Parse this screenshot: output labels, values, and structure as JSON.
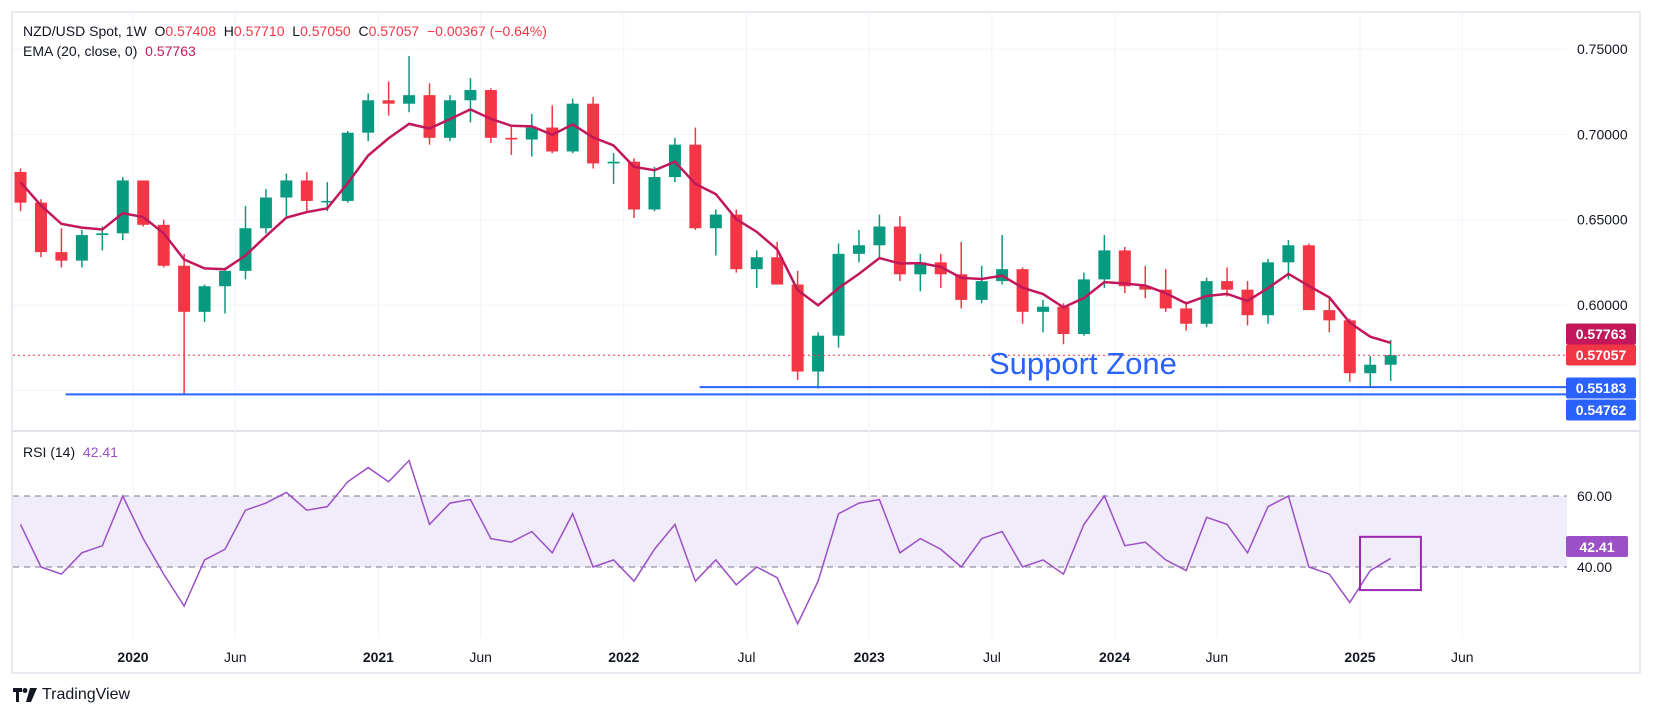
{
  "header": {
    "symbol": "NZD/USD Spot, 1W",
    "o_label": "O",
    "open": "0.57408",
    "h_label": "H",
    "high": "0.57710",
    "l_label": "L",
    "low": "0.57050",
    "c_label": "C",
    "close": "0.57057",
    "change": "−0.00367 (−0.64%)",
    "ema_label": "EMA (20, close, 0)",
    "ema_value": "0.57763"
  },
  "rsi_legend": {
    "label": "RSI (14)",
    "value": "42.41"
  },
  "annotation": {
    "support_text": "Support Zone"
  },
  "branding": {
    "name": "TradingView"
  },
  "colors": {
    "up": "#089981",
    "down": "#f23645",
    "ema": "#c2185b",
    "support": "#2962ff",
    "rsi": "#9c4fc7",
    "rsi_band": "#f1ecf9",
    "highlight_box": "#9c27b0"
  },
  "chart_data": [
    {
      "type": "candlestick",
      "title": "NZD/USD Spot, 1W",
      "y_ticks": [
        "0.75000",
        "0.70000",
        "0.65000",
        "0.60000"
      ],
      "ylim": [
        0.525,
        0.765
      ],
      "x_ticks": [
        "2020",
        "Jun",
        "2021",
        "Jun",
        "2022",
        "Jul",
        "2023",
        "Jul",
        "2024",
        "Jun",
        "2025",
        "Jun"
      ],
      "x_tick_dates": [
        "2020-01",
        "2020-06",
        "2021-01",
        "2021-06",
        "2022-01",
        "2022-07",
        "2023-01",
        "2023-07",
        "2024-01",
        "2024-06",
        "2025-01",
        "2025-06"
      ],
      "grid": true,
      "candles_columns": [
        "date",
        "open",
        "high",
        "low",
        "close"
      ],
      "candles": [
        [
          "2019-07",
          0.678,
          0.68,
          0.655,
          0.66
        ],
        [
          "2019-08",
          0.66,
          0.662,
          0.628,
          0.631
        ],
        [
          "2019-09",
          0.631,
          0.645,
          0.622,
          0.626
        ],
        [
          "2019-10",
          0.626,
          0.644,
          0.622,
          0.641
        ],
        [
          "2019-11",
          0.641,
          0.646,
          0.632,
          0.642
        ],
        [
          "2019-12",
          0.642,
          0.675,
          0.638,
          0.673
        ],
        [
          "2020-01",
          0.673,
          0.673,
          0.646,
          0.647
        ],
        [
          "2020-02",
          0.647,
          0.65,
          0.622,
          0.623
        ],
        [
          "2020-03",
          0.623,
          0.63,
          0.547,
          0.596
        ],
        [
          "2020-04",
          0.596,
          0.612,
          0.59,
          0.611
        ],
        [
          "2020-05",
          0.611,
          0.622,
          0.595,
          0.62
        ],
        [
          "2020-06",
          0.62,
          0.658,
          0.615,
          0.645
        ],
        [
          "2020-07",
          0.645,
          0.668,
          0.642,
          0.663
        ],
        [
          "2020-08",
          0.663,
          0.677,
          0.652,
          0.673
        ],
        [
          "2020-09",
          0.673,
          0.678,
          0.655,
          0.661
        ],
        [
          "2020-10",
          0.661,
          0.672,
          0.655,
          0.661
        ],
        [
          "2020-11",
          0.661,
          0.702,
          0.66,
          0.701
        ],
        [
          "2020-12",
          0.701,
          0.724,
          0.696,
          0.72
        ],
        [
          "2021-01",
          0.72,
          0.731,
          0.711,
          0.718
        ],
        [
          "2021-02",
          0.718,
          0.746,
          0.713,
          0.723
        ],
        [
          "2021-03",
          0.723,
          0.73,
          0.694,
          0.698
        ],
        [
          "2021-04",
          0.698,
          0.723,
          0.696,
          0.72
        ],
        [
          "2021-05",
          0.72,
          0.733,
          0.707,
          0.726
        ],
        [
          "2021-06",
          0.726,
          0.727,
          0.695,
          0.698
        ],
        [
          "2021-07",
          0.698,
          0.705,
          0.688,
          0.697
        ],
        [
          "2021-08",
          0.697,
          0.712,
          0.687,
          0.704
        ],
        [
          "2021-09",
          0.704,
          0.717,
          0.689,
          0.69
        ],
        [
          "2021-10",
          0.69,
          0.721,
          0.689,
          0.718
        ],
        [
          "2021-11",
          0.718,
          0.722,
          0.68,
          0.683
        ],
        [
          "2021-12",
          0.683,
          0.689,
          0.671,
          0.684
        ],
        [
          "2022-01",
          0.684,
          0.686,
          0.651,
          0.656
        ],
        [
          "2022-02",
          0.656,
          0.681,
          0.655,
          0.675
        ],
        [
          "2022-03",
          0.675,
          0.698,
          0.672,
          0.694
        ],
        [
          "2022-04",
          0.694,
          0.704,
          0.644,
          0.645
        ],
        [
          "2022-05",
          0.645,
          0.656,
          0.629,
          0.653
        ],
        [
          "2022-06",
          0.653,
          0.656,
          0.619,
          0.621
        ],
        [
          "2022-07",
          0.621,
          0.632,
          0.61,
          0.628
        ],
        [
          "2022-08",
          0.628,
          0.637,
          0.612,
          0.612
        ],
        [
          "2022-09",
          0.612,
          0.62,
          0.556,
          0.561
        ],
        [
          "2022-10",
          0.561,
          0.584,
          0.551,
          0.582
        ],
        [
          "2022-11",
          0.582,
          0.636,
          0.575,
          0.63
        ],
        [
          "2022-12",
          0.63,
          0.644,
          0.625,
          0.635
        ],
        [
          "2023-01",
          0.635,
          0.653,
          0.628,
          0.646
        ],
        [
          "2023-02",
          0.646,
          0.652,
          0.614,
          0.618
        ],
        [
          "2023-03",
          0.618,
          0.63,
          0.608,
          0.625
        ],
        [
          "2023-04",
          0.625,
          0.63,
          0.61,
          0.618
        ],
        [
          "2023-05",
          0.618,
          0.637,
          0.598,
          0.603
        ],
        [
          "2023-06",
          0.603,
          0.623,
          0.601,
          0.614
        ],
        [
          "2023-07",
          0.614,
          0.641,
          0.612,
          0.621
        ],
        [
          "2023-08",
          0.621,
          0.622,
          0.589,
          0.596
        ],
        [
          "2023-09",
          0.596,
          0.603,
          0.584,
          0.599
        ],
        [
          "2023-10",
          0.599,
          0.601,
          0.577,
          0.583
        ],
        [
          "2023-11",
          0.583,
          0.619,
          0.582,
          0.615
        ],
        [
          "2023-12",
          0.615,
          0.641,
          0.61,
          0.632
        ],
        [
          "2024-01",
          0.632,
          0.634,
          0.607,
          0.611
        ],
        [
          "2024-02",
          0.611,
          0.623,
          0.604,
          0.609
        ],
        [
          "2024-03",
          0.609,
          0.621,
          0.596,
          0.598
        ],
        [
          "2024-04",
          0.598,
          0.602,
          0.585,
          0.589
        ],
        [
          "2024-05",
          0.589,
          0.616,
          0.587,
          0.614
        ],
        [
          "2024-06",
          0.614,
          0.622,
          0.605,
          0.609
        ],
        [
          "2024-07",
          0.609,
          0.614,
          0.588,
          0.594
        ],
        [
          "2024-08",
          0.594,
          0.627,
          0.589,
          0.625
        ],
        [
          "2024-09",
          0.625,
          0.638,
          0.615,
          0.635
        ],
        [
          "2024-10",
          0.635,
          0.636,
          0.597,
          0.597
        ],
        [
          "2024-11",
          0.597,
          0.605,
          0.584,
          0.591
        ],
        [
          "2024-12",
          0.591,
          0.592,
          0.555,
          0.56
        ],
        [
          "2025-01",
          0.56,
          0.57,
          0.552,
          0.565
        ],
        [
          "2025-02",
          0.565,
          0.5795,
          0.5555,
          0.57057
        ]
      ],
      "ema_name": "EMA (20, close, 0)",
      "price_labels": [
        {
          "value": "0.57763",
          "color": "#c2185b"
        },
        {
          "value": "0.57057",
          "color": "#f23645"
        },
        {
          "value": "0.55183",
          "color": "#2962ff"
        },
        {
          "value": "0.54762",
          "color": "#2962ff"
        }
      ],
      "support_lines": [
        {
          "price": 0.55183,
          "from": "2022-05"
        },
        {
          "price": 0.54762,
          "from": "2019-10"
        }
      ],
      "last_price_line": 0.57057
    },
    {
      "type": "line",
      "title": "RSI (14)",
      "ylim": [
        20,
        78
      ],
      "y_ticks": [
        "60.00",
        "40.00"
      ],
      "band": [
        40,
        60
      ],
      "current_label": "42.41",
      "series": [
        [
          "2019-07",
          52
        ],
        [
          "2019-08",
          40
        ],
        [
          "2019-09",
          38
        ],
        [
          "2019-10",
          44
        ],
        [
          "2019-11",
          46
        ],
        [
          "2019-12",
          60
        ],
        [
          "2020-01",
          48
        ],
        [
          "2020-02",
          38
        ],
        [
          "2020-03",
          29
        ],
        [
          "2020-04",
          42
        ],
        [
          "2020-05",
          45
        ],
        [
          "2020-06",
          56
        ],
        [
          "2020-07",
          58
        ],
        [
          "2020-08",
          61
        ],
        [
          "2020-09",
          56
        ],
        [
          "2020-10",
          57
        ],
        [
          "2020-11",
          64
        ],
        [
          "2020-12",
          68
        ],
        [
          "2021-01",
          64
        ],
        [
          "2021-02",
          70
        ],
        [
          "2021-03",
          52
        ],
        [
          "2021-04",
          58
        ],
        [
          "2021-05",
          59
        ],
        [
          "2021-06",
          48
        ],
        [
          "2021-07",
          47
        ],
        [
          "2021-08",
          50
        ],
        [
          "2021-09",
          44
        ],
        [
          "2021-10",
          55
        ],
        [
          "2021-11",
          40
        ],
        [
          "2021-12",
          42
        ],
        [
          "2022-01",
          36
        ],
        [
          "2022-02",
          45
        ],
        [
          "2022-03",
          52
        ],
        [
          "2022-04",
          36
        ],
        [
          "2022-05",
          42
        ],
        [
          "2022-06",
          35
        ],
        [
          "2022-07",
          40
        ],
        [
          "2022-08",
          37
        ],
        [
          "2022-09",
          24
        ],
        [
          "2022-10",
          36
        ],
        [
          "2022-11",
          55
        ],
        [
          "2022-12",
          58
        ],
        [
          "2023-01",
          59
        ],
        [
          "2023-02",
          44
        ],
        [
          "2023-03",
          48
        ],
        [
          "2023-04",
          45
        ],
        [
          "2023-05",
          40
        ],
        [
          "2023-06",
          48
        ],
        [
          "2023-07",
          50
        ],
        [
          "2023-08",
          40
        ],
        [
          "2023-09",
          42
        ],
        [
          "2023-10",
          38
        ],
        [
          "2023-11",
          52
        ],
        [
          "2023-12",
          60
        ],
        [
          "2024-01",
          46
        ],
        [
          "2024-02",
          47
        ],
        [
          "2024-03",
          42
        ],
        [
          "2024-04",
          39
        ],
        [
          "2024-05",
          54
        ],
        [
          "2024-06",
          52
        ],
        [
          "2024-07",
          44
        ],
        [
          "2024-08",
          57
        ],
        [
          "2024-09",
          60
        ],
        [
          "2024-10",
          40
        ],
        [
          "2024-11",
          38
        ],
        [
          "2024-12",
          30
        ],
        [
          "2025-01",
          39
        ],
        [
          "2025-02",
          42.41
        ]
      ],
      "highlight_box": {
        "from": "2025-01",
        "to": "2025-03",
        "rsi_range": [
          33.5,
          48.5
        ]
      }
    }
  ]
}
